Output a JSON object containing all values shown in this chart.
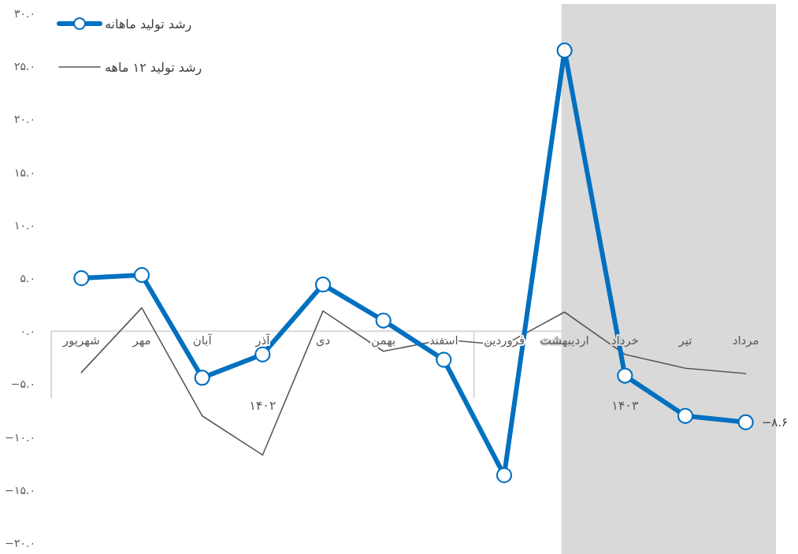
{
  "chart_data": {
    "type": "line",
    "categories": [
      "شهریور",
      "مهر",
      "آبان",
      "آذر",
      "دی",
      "بهمن",
      "اسفند",
      "فروردین",
      "اردیبهشت",
      "خرداد",
      "تیر",
      "مرداد"
    ],
    "series": [
      {
        "name": "رشد تولید ماهانه",
        "color": "#0070c0",
        "marker": "circle",
        "values": [
          5.0,
          5.3,
          -4.4,
          -2.2,
          4.4,
          1.0,
          -2.7,
          -13.6,
          26.5,
          -4.2,
          -8.0,
          -8.6
        ],
        "value_labels": [
          null,
          null,
          null,
          null,
          null,
          null,
          null,
          null,
          null,
          null,
          null,
          "−۸.۶"
        ]
      },
      {
        "name": "رشد تولید ۱۲ ماهه",
        "color": "#595959",
        "marker": "none",
        "values": [
          -3.9,
          2.2,
          -8.0,
          -11.7,
          1.9,
          -1.9,
          -0.8,
          -1.3,
          1.8,
          -2.2,
          -3.5,
          -4.0
        ]
      }
    ],
    "ylim": [
      -20,
      30
    ],
    "yticks": [
      {
        "value": 30,
        "label": "۳۰.۰"
      },
      {
        "value": 25,
        "label": "۲۵.۰"
      },
      {
        "value": 20,
        "label": "۲۰.۰"
      },
      {
        "value": 15,
        "label": "۱۵.۰"
      },
      {
        "value": 10,
        "label": "۱۰.۰"
      },
      {
        "value": 5,
        "label": "۵.۰"
      },
      {
        "value": 0,
        "label": "۰.۰"
      },
      {
        "value": -5,
        "label": "−۵.۰"
      },
      {
        "value": -10,
        "label": "−۱۰.۰"
      },
      {
        "value": -15,
        "label": "−۱۵.۰"
      },
      {
        "value": -20,
        "label": "−۲۰.۰"
      }
    ],
    "bands": [
      {
        "axis": "x",
        "from": "اردیبهشت",
        "to": "مرداد",
        "color": "#d9d9d9"
      }
    ],
    "annotations": [
      "۱۴۰۲",
      "۱۴۰۳"
    ],
    "grid": false,
    "legend": "top left"
  }
}
